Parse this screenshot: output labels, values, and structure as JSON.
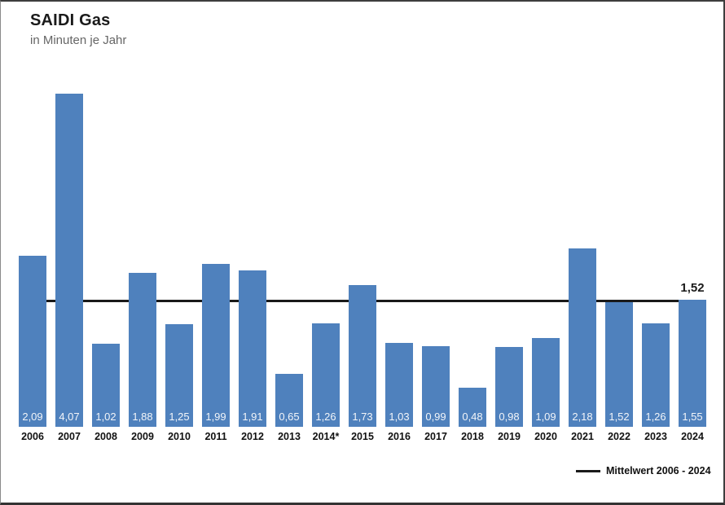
{
  "chart_data": {
    "type": "bar",
    "title": "SAIDI Gas",
    "subtitle": "in Minuten je Jahr",
    "categories": [
      "2006",
      "2007",
      "2008",
      "2009",
      "2010",
      "2011",
      "2012",
      "2013",
      "2014*",
      "2015",
      "2016",
      "2017",
      "2018",
      "2019",
      "2020",
      "2021",
      "2022",
      "2023",
      "2024"
    ],
    "values": [
      2.09,
      4.07,
      1.02,
      1.88,
      1.25,
      1.99,
      1.91,
      0.65,
      1.26,
      1.73,
      1.03,
      0.99,
      0.48,
      0.98,
      1.09,
      2.18,
      1.52,
      1.26,
      1.55
    ],
    "value_labels": [
      "2,09",
      "4,07",
      "1,02",
      "1,88",
      "1,25",
      "1,99",
      "1,91",
      "0,65",
      "1,26",
      "1,73",
      "1,03",
      "0,99",
      "0,48",
      "0,98",
      "1,09",
      "2,18",
      "1,52",
      "1,26",
      "1,55"
    ],
    "xlabel": "",
    "ylabel": "Minuten je Jahr",
    "ylim": [
      0,
      4.5
    ],
    "y_axis": "hidden",
    "grid": false,
    "bar_color": "#4f81bd",
    "value_label_color": "#f2f5f9",
    "mean_line": {
      "value": 1.52,
      "label": "1,52",
      "legend_label": "Mittelwert 2006 - 2024",
      "color": "#1a1a1a"
    },
    "legend_position": "bottom-right"
  }
}
